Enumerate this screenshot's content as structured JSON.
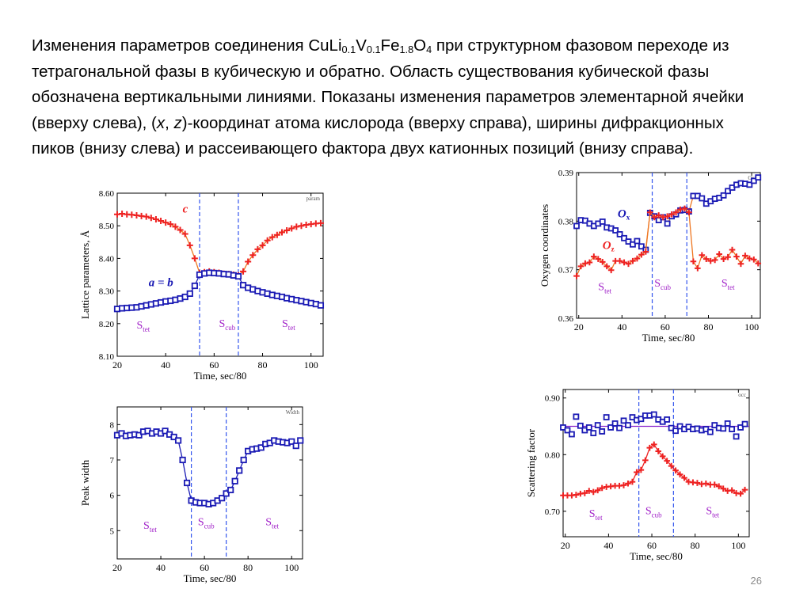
{
  "slide": {
    "caption_part1": "Изменения параметров соединения CuLi",
    "caption_sub1": "0.1",
    "caption_part2": "V",
    "caption_sub2": "0.1",
    "caption_part3": "Fe",
    "caption_sub3": "1.8",
    "caption_part4": "O",
    "caption_sub4": "4",
    "caption_part5": " при структурном фазовом переходе из тетрагональной фазы в кубическую и обратно. Область существования кубической фазы обозначена вертикальными линиями. Показаны изменения параметров элементарной ячейки (вверху слева), (",
    "caption_italic_x": "x",
    "caption_part6": ", ",
    "caption_italic_z": "z",
    "caption_part7": ")-координат атома кислорода (вверху справа), ширины дифракционных пиков (внизу слева) и рассеивающего фактора двух катионных позиций (внизу справа).",
    "page_number": "26"
  },
  "colors": {
    "blue_series": "#1a1ab4",
    "red_series": "#ee2222",
    "orange_line": "#ee7722",
    "phase_label": "#a020c8",
    "boundary_line": "#3355ee",
    "axis": "#000000"
  },
  "chart_data": [
    {
      "id": "lattice",
      "type": "line",
      "corner_label": "param",
      "xlabel": "Time, sec/80",
      "ylabel": "Lattice parameters, Å",
      "xlim": [
        20,
        105
      ],
      "ylim": [
        8.1,
        8.6
      ],
      "xticks": [
        20,
        40,
        60,
        80,
        100
      ],
      "yticks": [
        8.1,
        8.2,
        8.3,
        8.4,
        8.5,
        8.6
      ],
      "ytick_decimals": 2,
      "vlines": [
        54,
        70
      ],
      "phase_labels": [
        {
          "main": "S",
          "sub": "tet",
          "x": 28,
          "y": 8.185
        },
        {
          "main": "S",
          "sub": "cub",
          "x": 62,
          "y": 8.19
        },
        {
          "main": "S",
          "sub": "tet",
          "x": 88,
          "y": 8.19
        }
      ],
      "series_labels": [
        {
          "text": "c",
          "color": "#ee2222",
          "x": 47,
          "y": 8.54
        },
        {
          "text": "a = b",
          "color": "#1a1ab4",
          "x": 33,
          "y": 8.315
        }
      ],
      "series": [
        {
          "name": "c",
          "marker": "plus",
          "color": "#ee2222",
          "line_color": "#ee7722",
          "x": [
            20,
            22,
            24,
            26,
            28,
            30,
            32,
            34,
            36,
            38,
            40,
            42,
            44,
            46,
            48,
            50,
            52,
            54,
            56,
            58,
            60,
            62,
            64,
            66,
            68,
            70,
            72,
            74,
            76,
            78,
            80,
            82,
            84,
            86,
            88,
            90,
            92,
            94,
            96,
            98,
            100,
            102,
            104
          ],
          "y": [
            8.535,
            8.537,
            8.535,
            8.534,
            8.532,
            8.53,
            8.528,
            8.524,
            8.52,
            8.515,
            8.51,
            8.505,
            8.497,
            8.487,
            8.475,
            8.44,
            8.4,
            8.355,
            8.358,
            8.36,
            8.358,
            8.356,
            8.353,
            8.352,
            8.35,
            8.348,
            8.36,
            8.39,
            8.41,
            8.428,
            8.44,
            8.455,
            8.465,
            8.472,
            8.48,
            8.486,
            8.492,
            8.497,
            8.5,
            8.503,
            8.505,
            8.507,
            8.508
          ]
        },
        {
          "name": "a = b",
          "marker": "square",
          "color": "#1a1ab4",
          "line_color": "#1a1ab4",
          "x": [
            20,
            22,
            24,
            26,
            28,
            30,
            32,
            34,
            36,
            38,
            40,
            42,
            44,
            46,
            48,
            50,
            52,
            54,
            56,
            58,
            60,
            62,
            64,
            66,
            68,
            70,
            72,
            74,
            76,
            78,
            80,
            82,
            84,
            86,
            88,
            90,
            92,
            94,
            96,
            98,
            100,
            102,
            104
          ],
          "y": [
            8.245,
            8.247,
            8.248,
            8.249,
            8.25,
            8.253,
            8.256,
            8.259,
            8.262,
            8.265,
            8.268,
            8.27,
            8.273,
            8.277,
            8.282,
            8.292,
            8.316,
            8.35,
            8.354,
            8.356,
            8.355,
            8.354,
            8.352,
            8.351,
            8.348,
            8.345,
            8.318,
            8.31,
            8.305,
            8.3,
            8.296,
            8.292,
            8.288,
            8.285,
            8.282,
            8.278,
            8.275,
            8.272,
            8.269,
            8.266,
            8.263,
            8.26,
            8.256
          ]
        }
      ]
    },
    {
      "id": "oxygen",
      "type": "scatter",
      "corner_label": "Oxz",
      "xlabel": "Time, sec/80",
      "ylabel": "Oxygen coordinates",
      "xlim": [
        19,
        104
      ],
      "ylim": [
        0.36,
        0.39
      ],
      "xticks": [
        20,
        40,
        60,
        80,
        100
      ],
      "yticks": [
        0.36,
        0.37,
        0.38,
        0.39
      ],
      "ytick_decimals": 2,
      "vlines": [
        54,
        70
      ],
      "phase_labels": [
        {
          "main": "S",
          "sub": "tet",
          "x": 29,
          "y": 0.3658
        },
        {
          "main": "S",
          "sub": "cub",
          "x": 55,
          "y": 0.3665
        },
        {
          "main": "S",
          "sub": "tet",
          "x": 86,
          "y": 0.3665
        }
      ],
      "series_labels": [
        {
          "text": "O",
          "sub": "x",
          "color": "#1a1ab4",
          "x": 38,
          "y": 0.3808
        },
        {
          "text": "O",
          "sub": "z",
          "color": "#ee2222",
          "x": 31,
          "y": 0.3743
        }
      ],
      "series": [
        {
          "name": "O",
          "name_sub": "x",
          "marker": "square",
          "color": "#1a1ab4",
          "line_color": "#ee7722",
          "x": [
            19,
            21,
            23,
            25,
            27,
            29,
            31,
            33,
            35,
            37,
            39,
            41,
            43,
            45,
            47,
            49,
            51,
            53,
            55,
            57,
            59,
            61,
            63,
            65,
            67,
            69,
            71,
            73,
            75,
            77,
            79,
            81,
            83,
            85,
            87,
            89,
            91,
            93,
            95,
            97,
            99,
            101,
            103
          ],
          "y": [
            0.379,
            0.3802,
            0.3801,
            0.3795,
            0.379,
            0.3795,
            0.3799,
            0.3787,
            0.3785,
            0.3781,
            0.3773,
            0.3765,
            0.3758,
            0.3752,
            0.3759,
            0.3748,
            0.3741,
            0.3817,
            0.381,
            0.3802,
            0.3808,
            0.3795,
            0.381,
            0.3814,
            0.3822,
            0.3823,
            0.382,
            0.3852,
            0.3852,
            0.3847,
            0.3836,
            0.3841,
            0.3846,
            0.3848,
            0.3853,
            0.3862,
            0.3869,
            0.3875,
            0.3878,
            0.3877,
            0.3875,
            0.3883,
            0.389
          ]
        },
        {
          "name": "O",
          "name_sub": "z",
          "marker": "plus",
          "color": "#ee2222",
          "line_color": "#ee7722",
          "x": [
            19,
            21,
            23,
            25,
            27,
            29,
            31,
            33,
            35,
            37,
            39,
            41,
            43,
            45,
            47,
            49,
            51,
            53,
            55,
            57,
            59,
            61,
            63,
            65,
            67,
            69,
            71,
            73,
            75,
            77,
            79,
            81,
            83,
            85,
            87,
            89,
            91,
            93,
            95,
            97,
            99,
            101,
            103
          ],
          "y": [
            0.3687,
            0.3707,
            0.3713,
            0.3715,
            0.3727,
            0.3722,
            0.3716,
            0.3707,
            0.3699,
            0.3718,
            0.3718,
            0.3715,
            0.3712,
            0.3718,
            0.3723,
            0.3731,
            0.3737,
            0.3818,
            0.3808,
            0.3812,
            0.3808,
            0.381,
            0.3814,
            0.3818,
            0.3824,
            0.3826,
            0.3818,
            0.3717,
            0.3703,
            0.373,
            0.3722,
            0.3718,
            0.372,
            0.3732,
            0.3722,
            0.3726,
            0.3741,
            0.3727,
            0.3712,
            0.3729,
            0.3723,
            0.3721,
            0.3713
          ]
        }
      ]
    },
    {
      "id": "width",
      "type": "line",
      "corner_label": "Width",
      "xlabel": "Time, sec/80",
      "ylabel": "Peak width",
      "xlim": [
        20,
        105
      ],
      "ylim": [
        4.2,
        8.5
      ],
      "xticks": [
        20,
        40,
        60,
        80,
        100
      ],
      "yticks": [
        5,
        6,
        7,
        8
      ],
      "ytick_decimals": 0,
      "vlines": [
        54,
        70
      ],
      "phase_labels": [
        {
          "main": "S",
          "sub": "tet",
          "x": 32,
          "y": 5.05
        },
        {
          "main": "S",
          "sub": "cub",
          "x": 57,
          "y": 5.15
        },
        {
          "main": "S",
          "sub": "tet",
          "x": 88,
          "y": 5.15
        }
      ],
      "series_labels": [],
      "series": [
        {
          "name": "",
          "marker": "square",
          "color": "#1a1ab4",
          "line_color": "#1a1ab4",
          "x": [
            20,
            22,
            24,
            26,
            28,
            30,
            32,
            34,
            36,
            38,
            40,
            42,
            44,
            46,
            48,
            50,
            52,
            54,
            56,
            58,
            60,
            62,
            64,
            66,
            68,
            70,
            72,
            74,
            76,
            78,
            80,
            82,
            84,
            86,
            88,
            90,
            92,
            94,
            96,
            98,
            100,
            102,
            104
          ],
          "y": [
            7.7,
            7.75,
            7.68,
            7.7,
            7.72,
            7.7,
            7.8,
            7.82,
            7.75,
            7.8,
            7.75,
            7.82,
            7.72,
            7.65,
            7.55,
            7.0,
            6.35,
            5.85,
            5.8,
            5.78,
            5.78,
            5.75,
            5.78,
            5.85,
            5.92,
            6.05,
            6.15,
            6.4,
            6.7,
            7.0,
            7.25,
            7.3,
            7.32,
            7.35,
            7.45,
            7.48,
            7.55,
            7.52,
            7.5,
            7.48,
            7.52,
            7.4,
            7.55
          ]
        }
      ]
    },
    {
      "id": "scattering",
      "type": "line",
      "corner_label": "occ",
      "xlabel": "Time, sec/80",
      "ylabel": "Scattering factor",
      "xlim": [
        19,
        105
      ],
      "ylim": [
        0.655,
        0.915
      ],
      "xticks": [
        20,
        40,
        60,
        80,
        100
      ],
      "yticks": [
        0.7,
        0.8,
        0.9
      ],
      "ytick_decimals": 2,
      "vlines": [
        54,
        70
      ],
      "hline": {
        "y": 0.85,
        "color": "#8822cc"
      },
      "phase_labels": [
        {
          "main": "S",
          "sub": "tet",
          "x": 31,
          "y": 0.69
        },
        {
          "main": "S",
          "sub": "cub",
          "x": 57,
          "y": 0.695
        },
        {
          "main": "S",
          "sub": "tet",
          "x": 85,
          "y": 0.695
        }
      ],
      "series_labels": [],
      "series": [
        {
          "name": "",
          "marker": "square",
          "color": "#1a1ab4",
          "line_color": "none",
          "x": [
            19,
            21,
            23,
            25,
            27,
            29,
            31,
            33,
            35,
            37,
            39,
            41,
            43,
            45,
            47,
            49,
            51,
            53,
            55,
            57,
            59,
            61,
            63,
            65,
            67,
            69,
            71,
            73,
            75,
            77,
            79,
            81,
            83,
            85,
            87,
            89,
            91,
            93,
            95,
            97,
            99,
            101,
            103
          ],
          "y": [
            0.848,
            0.843,
            0.836,
            0.867,
            0.851,
            0.843,
            0.848,
            0.838,
            0.852,
            0.841,
            0.866,
            0.848,
            0.855,
            0.847,
            0.86,
            0.852,
            0.866,
            0.861,
            0.863,
            0.869,
            0.869,
            0.871,
            0.862,
            0.858,
            0.862,
            0.847,
            0.842,
            0.85,
            0.845,
            0.849,
            0.845,
            0.846,
            0.843,
            0.845,
            0.84,
            0.852,
            0.847,
            0.846,
            0.855,
            0.845,
            0.832,
            0.848,
            0.854
          ]
        },
        {
          "name": "",
          "marker": "plus",
          "color": "#ee2222",
          "line_color": "#ee2222",
          "x": [
            19,
            21,
            23,
            25,
            27,
            29,
            31,
            33,
            35,
            37,
            39,
            41,
            43,
            45,
            47,
            49,
            51,
            53,
            55,
            57,
            59,
            61,
            63,
            65,
            67,
            69,
            71,
            73,
            75,
            77,
            79,
            81,
            83,
            85,
            87,
            89,
            91,
            93,
            95,
            97,
            99,
            101,
            103
          ],
          "y": [
            0.728,
            0.728,
            0.728,
            0.729,
            0.731,
            0.732,
            0.736,
            0.734,
            0.737,
            0.741,
            0.743,
            0.744,
            0.745,
            0.745,
            0.746,
            0.749,
            0.752,
            0.769,
            0.773,
            0.79,
            0.812,
            0.818,
            0.806,
            0.797,
            0.789,
            0.78,
            0.772,
            0.765,
            0.759,
            0.752,
            0.751,
            0.75,
            0.748,
            0.749,
            0.747,
            0.747,
            0.744,
            0.74,
            0.736,
            0.737,
            0.732,
            0.731,
            0.738
          ]
        }
      ]
    }
  ]
}
